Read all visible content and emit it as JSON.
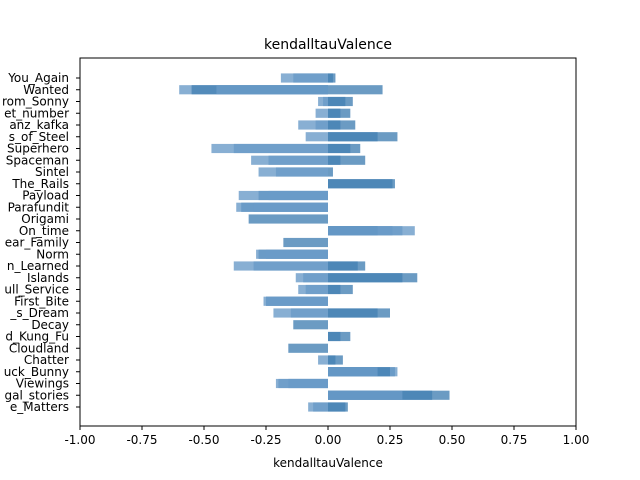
{
  "chart_data": {
    "type": "bar",
    "orientation": "horizontal",
    "title": "kendalltauValence",
    "xlabel": "kendalltauValence",
    "ylabel": "",
    "xlim": [
      -1.0,
      1.0
    ],
    "x_ticks": [
      "-1.00",
      "-0.75",
      "-0.50",
      "-0.25",
      "0.00",
      "0.25",
      "0.50",
      "0.75",
      "1.00"
    ],
    "x_tick_values": [
      -1.0,
      -0.75,
      -0.5,
      -0.25,
      0.0,
      0.25,
      0.5,
      0.75,
      1.0
    ],
    "grid": false,
    "colors": {
      "bar": "#4682b4",
      "bar_light": "#6a9bc8"
    },
    "categories": [
      "You_Again",
      "Wanted",
      "From_Sonny",
      "Secret_number",
      "Franz_kafka",
      "Tears_of_Steel",
      "Superhero",
      "Spaceman",
      "Sintel",
      "Riding_The_Rails",
      "Payload",
      "Parafundit",
      "Origami",
      "On_time",
      "Our_Nuclear_Family",
      "Norm",
      "Lessons_Learned",
      "Islands",
      "Full_Service",
      "First_Bite",
      "Elephant_s_Dream",
      "Decay",
      "Cloudland_Kung_Fu",
      "Cloudland",
      "Chatter",
      "Big_Buck_Bunny",
      "Viewings",
      "Animated_Legal_stories",
      "Attitude_Matters"
    ],
    "tick_labels": [
      "You_Again",
      "Wanted",
      "rom_Sonny",
      "et_number",
      "anz_kafka",
      "s_of_Steel",
      "Superhero",
      "Spaceman",
      "Sintel",
      "The_Rails",
      "Payload",
      "Parafundit",
      "Origami",
      "On_time",
      "ear_Family",
      "Norm",
      "n_Learned",
      "Islands",
      "ull_Service",
      "First_Bite",
      "_s_Dream",
      "Decay",
      "d_Kung_Fu",
      "Cloudland",
      "Chatter",
      "uck_Bunny",
      "Viewings",
      "gal_stories",
      "e_Matters"
    ],
    "series": [
      {
        "values": [
          0.03,
          0.22,
          0.07,
          0.09,
          0.11,
          0.28,
          0.09,
          0.15,
          0.02,
          0.27,
          -0.28,
          -0.35,
          -0.32,
          0.26,
          -0.18,
          -0.28,
          0.12,
          0.36,
          0.1,
          -0.25,
          0.25,
          -0.14,
          0.09,
          -0.16,
          0.06,
          0.27,
          -0.16,
          0.49,
          0.07
        ]
      },
      {
        "values": [
          -0.14,
          -0.6,
          -0.04,
          -0.05,
          -0.12,
          -0.09,
          -0.38,
          -0.24,
          -0.21,
          0.0,
          -0.36,
          -0.37,
          0.0,
          0.35,
          0.0,
          -0.29,
          -0.38,
          -0.13,
          -0.09,
          -0.26,
          -0.15,
          0.0,
          0.0,
          0.0,
          -0.04,
          0.28,
          -0.21,
          0.0,
          -0.06
        ]
      },
      {
        "values": [
          0.02,
          -0.55,
          0.1,
          0.05,
          0.05,
          0.2,
          0.13,
          0.05,
          0.0,
          0.26,
          0.0,
          0.0,
          0.0,
          0.2,
          0.0,
          0.0,
          0.15,
          0.3,
          0.05,
          0.0,
          0.2,
          0.0,
          0.05,
          0.0,
          0.03,
          0.25,
          0.0,
          0.42,
          0.08
        ]
      },
      {
        "values": [
          -0.19,
          -0.45,
          -0.02,
          0.0,
          -0.05,
          0.0,
          -0.47,
          -0.31,
          -0.28,
          0.0,
          -0.24,
          -0.3,
          0.0,
          0.3,
          0.0,
          -0.25,
          -0.3,
          -0.1,
          -0.12,
          -0.25,
          -0.22,
          0.0,
          0.0,
          0.0,
          0.0,
          0.2,
          -0.2,
          0.3,
          -0.08
        ]
      }
    ]
  }
}
